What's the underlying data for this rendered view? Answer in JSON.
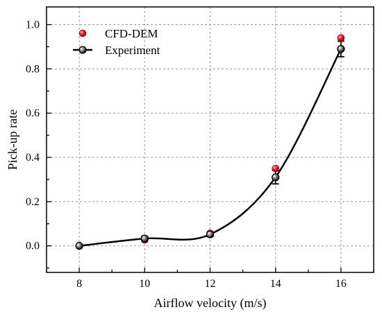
{
  "chart_data": {
    "type": "scatter",
    "xlabel": "Airflow velocity (m/s)",
    "ylabel": "Pick-up rate",
    "xlim": [
      7,
      17
    ],
    "ylim": [
      -0.12,
      1.08
    ],
    "x_ticks": [
      8,
      10,
      12,
      14,
      16
    ],
    "y_ticks": [
      0.0,
      0.2,
      0.4,
      0.6,
      0.8,
      1.0
    ],
    "x_tick_labels": [
      "8",
      "10",
      "12",
      "14",
      "16"
    ],
    "y_tick_labels": [
      "0.0",
      "0.2",
      "0.4",
      "0.6",
      "0.8",
      "1.0"
    ],
    "grid": true,
    "legend_position": "top-left",
    "series": [
      {
        "name": "CFD-DEM",
        "kind": "scatter",
        "color": "#e8202a",
        "x": [
          8,
          10,
          12,
          14,
          16
        ],
        "y": [
          0.0,
          0.027,
          0.057,
          0.35,
          0.94
        ]
      },
      {
        "name": "Experiment",
        "kind": "line-with-errorbars",
        "color": "#000000",
        "x": [
          8,
          10,
          12,
          14,
          16
        ],
        "y": [
          0.0,
          0.033,
          0.052,
          0.31,
          0.89
        ],
        "error": [
          0.0,
          0.01,
          0.01,
          0.03,
          0.035
        ]
      }
    ]
  }
}
